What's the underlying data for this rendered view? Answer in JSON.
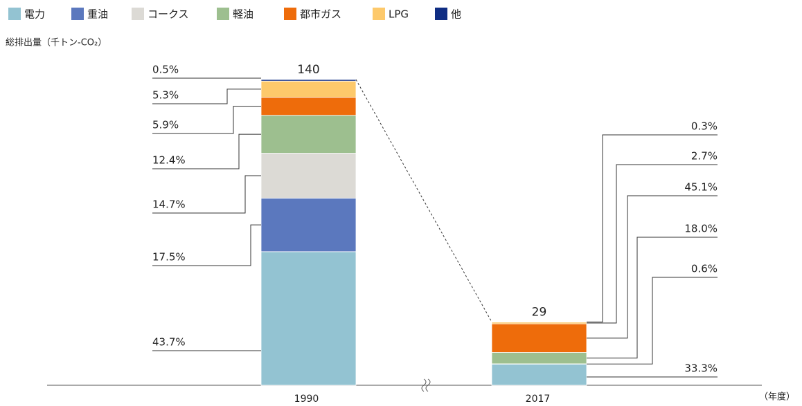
{
  "chart_data": {
    "type": "stacked_bar_percent",
    "y_axis_label": "総排出量（千トン-CO₂）",
    "x_axis_label": "（年度）",
    "categories": [
      "1990",
      "2017"
    ],
    "totals": [
      140,
      29
    ],
    "series": [
      {
        "name": "電力",
        "color": "#93c3d2",
        "values": [
          43.7,
          33.3
        ],
        "value_labels": [
          "43.7%",
          "33.3%"
        ]
      },
      {
        "name": "重油",
        "color": "#5b78be",
        "values": [
          17.5,
          0.6
        ],
        "value_labels": [
          "17.5%",
          "0.6%"
        ]
      },
      {
        "name": "コークス",
        "color": "#dcdad5",
        "values": [
          14.7,
          null
        ],
        "value_labels": [
          "14.7%",
          null
        ]
      },
      {
        "name": "軽油",
        "color": "#9dbf8f",
        "values": [
          12.4,
          18.0
        ],
        "value_labels": [
          "12.4%",
          "18.0%"
        ]
      },
      {
        "name": "都市ガス",
        "color": "#ee6c0b",
        "values": [
          5.9,
          45.1
        ],
        "value_labels": [
          "5.9%",
          "45.1%"
        ]
      },
      {
        "name": "LPG",
        "color": "#fdc96b",
        "values": [
          5.3,
          2.7
        ],
        "value_labels": [
          "5.3%",
          "2.7%"
        ]
      },
      {
        "name": "他",
        "color": "#0f2d83",
        "values": [
          0.5,
          0.3
        ],
        "value_labels": [
          "0.5%",
          "0.3%"
        ]
      }
    ]
  }
}
